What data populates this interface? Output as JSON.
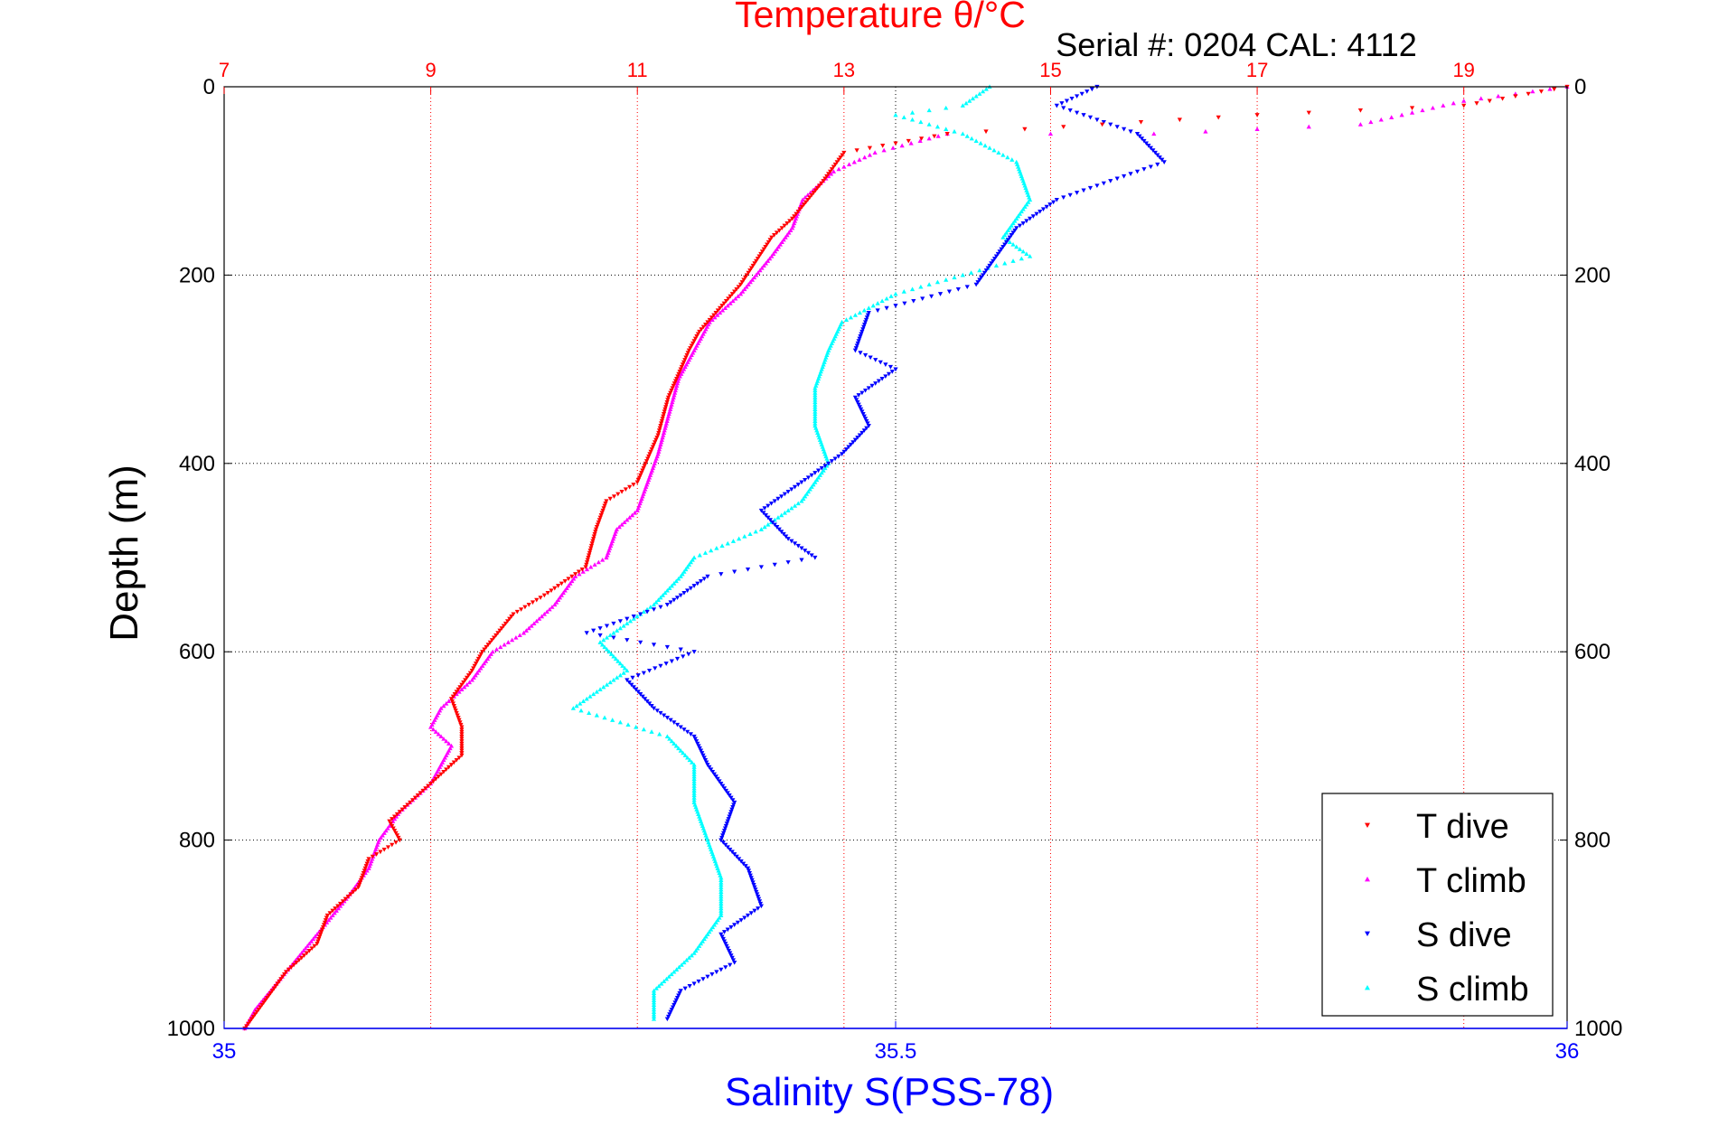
{
  "window_title": "",
  "serial_label": "Serial #: 0204  CAL: 4112",
  "colors": {
    "temperature_axis": "#ff0000",
    "salinity_axis": "#0000ff",
    "t_dive": "#ff0000",
    "t_climb": "#ff00ff",
    "s_dive": "#0000ff",
    "s_climb": "#00ffff",
    "grid": "#000000",
    "temp_grid": "#ff0000"
  },
  "chart_data": {
    "type": "scatter",
    "title": "",
    "top_axis": {
      "label": "Temperature θ/°C",
      "ticks": [
        7,
        9,
        11,
        13,
        15,
        17,
        19
      ],
      "range": [
        7,
        20
      ]
    },
    "bottom_axis": {
      "label": "Salinity S(PSS-78)",
      "ticks": [
        "35",
        "35.5",
        "36"
      ],
      "range": [
        35,
        36
      ]
    },
    "y_axis": {
      "label": "Depth (m)",
      "ticks": [
        0,
        200,
        400,
        600,
        800,
        1000
      ],
      "range": [
        0,
        1000
      ],
      "inverted": true
    },
    "grid": true,
    "legend_position": "bottom-right",
    "series": [
      {
        "name": "T dive",
        "marker": "triangle-down",
        "axis": "temperature",
        "points": [
          [
            20.0,
            0
          ],
          [
            19.0,
            20
          ],
          [
            17.0,
            30
          ],
          [
            15.5,
            40
          ],
          [
            14.0,
            50
          ],
          [
            13.0,
            70
          ],
          [
            12.8,
            100
          ],
          [
            12.5,
            140
          ],
          [
            12.3,
            160
          ],
          [
            12.0,
            210
          ],
          [
            11.6,
            260
          ],
          [
            11.5,
            280
          ],
          [
            11.3,
            330
          ],
          [
            11.2,
            370
          ],
          [
            11.0,
            420
          ],
          [
            10.7,
            440
          ],
          [
            10.6,
            470
          ],
          [
            10.5,
            510
          ],
          [
            10.1,
            540
          ],
          [
            9.8,
            560
          ],
          [
            9.5,
            600
          ],
          [
            9.4,
            620
          ],
          [
            9.2,
            650
          ],
          [
            9.3,
            680
          ],
          [
            9.3,
            710
          ],
          [
            8.9,
            750
          ],
          [
            8.6,
            780
          ],
          [
            8.7,
            800
          ],
          [
            8.4,
            820
          ],
          [
            8.3,
            850
          ],
          [
            8.0,
            880
          ],
          [
            7.9,
            910
          ],
          [
            7.6,
            940
          ],
          [
            7.4,
            970
          ],
          [
            7.2,
            1000
          ]
        ]
      },
      {
        "name": "T climb",
        "marker": "triangle-up",
        "axis": "temperature",
        "points": [
          [
            20.0,
            0
          ],
          [
            19.0,
            15
          ],
          [
            18.0,
            40
          ],
          [
            16.0,
            50
          ],
          [
            14.0,
            50
          ],
          [
            13.3,
            70
          ],
          [
            12.9,
            90
          ],
          [
            12.6,
            120
          ],
          [
            12.5,
            150
          ],
          [
            12.3,
            180
          ],
          [
            12.0,
            220
          ],
          [
            11.7,
            250
          ],
          [
            11.6,
            270
          ],
          [
            11.4,
            310
          ],
          [
            11.3,
            350
          ],
          [
            11.2,
            390
          ],
          [
            11.1,
            420
          ],
          [
            11.0,
            450
          ],
          [
            10.8,
            470
          ],
          [
            10.7,
            500
          ],
          [
            10.4,
            520
          ],
          [
            10.2,
            550
          ],
          [
            9.9,
            580
          ],
          [
            9.6,
            600
          ],
          [
            9.4,
            630
          ],
          [
            9.1,
            660
          ],
          [
            9.0,
            680
          ],
          [
            9.2,
            700
          ],
          [
            9.0,
            740
          ],
          [
            8.7,
            770
          ],
          [
            8.5,
            800
          ],
          [
            8.4,
            830
          ],
          [
            8.2,
            860
          ],
          [
            7.9,
            900
          ],
          [
            7.6,
            940
          ],
          [
            7.3,
            980
          ],
          [
            7.2,
            1000
          ]
        ]
      },
      {
        "name": "S dive",
        "marker": "triangle-down",
        "axis": "salinity",
        "points": [
          [
            35.65,
            0
          ],
          [
            35.62,
            20
          ],
          [
            35.68,
            50
          ],
          [
            35.7,
            80
          ],
          [
            35.62,
            120
          ],
          [
            35.59,
            150
          ],
          [
            35.57,
            190
          ],
          [
            35.56,
            210
          ],
          [
            35.48,
            240
          ],
          [
            35.47,
            280
          ],
          [
            35.5,
            300
          ],
          [
            35.47,
            330
          ],
          [
            35.48,
            360
          ],
          [
            35.46,
            390
          ],
          [
            35.43,
            420
          ],
          [
            35.4,
            450
          ],
          [
            35.42,
            480
          ],
          [
            35.44,
            500
          ],
          [
            35.36,
            520
          ],
          [
            35.33,
            550
          ],
          [
            35.27,
            580
          ],
          [
            35.35,
            600
          ],
          [
            35.3,
            630
          ],
          [
            35.32,
            660
          ],
          [
            35.35,
            690
          ],
          [
            35.36,
            720
          ],
          [
            35.38,
            760
          ],
          [
            35.37,
            800
          ],
          [
            35.39,
            830
          ],
          [
            35.4,
            870
          ],
          [
            35.37,
            900
          ],
          [
            35.38,
            930
          ],
          [
            35.34,
            960
          ],
          [
            35.33,
            990
          ]
        ]
      },
      {
        "name": "S climb",
        "marker": "triangle-up",
        "axis": "salinity",
        "points": [
          [
            35.57,
            0
          ],
          [
            35.55,
            20
          ],
          [
            35.5,
            30
          ],
          [
            35.55,
            50
          ],
          [
            35.59,
            80
          ],
          [
            35.6,
            120
          ],
          [
            35.58,
            160
          ],
          [
            35.6,
            180
          ],
          [
            35.5,
            220
          ],
          [
            35.46,
            250
          ],
          [
            35.45,
            280
          ],
          [
            35.44,
            320
          ],
          [
            35.44,
            360
          ],
          [
            35.45,
            400
          ],
          [
            35.43,
            440
          ],
          [
            35.4,
            470
          ],
          [
            35.35,
            500
          ],
          [
            35.34,
            520
          ],
          [
            35.32,
            550
          ],
          [
            35.28,
            590
          ],
          [
            35.3,
            620
          ],
          [
            35.26,
            660
          ],
          [
            35.33,
            690
          ],
          [
            35.35,
            720
          ],
          [
            35.35,
            760
          ],
          [
            35.36,
            800
          ],
          [
            35.37,
            840
          ],
          [
            35.37,
            880
          ],
          [
            35.35,
            920
          ],
          [
            35.32,
            960
          ],
          [
            35.32,
            990
          ]
        ]
      }
    ]
  }
}
